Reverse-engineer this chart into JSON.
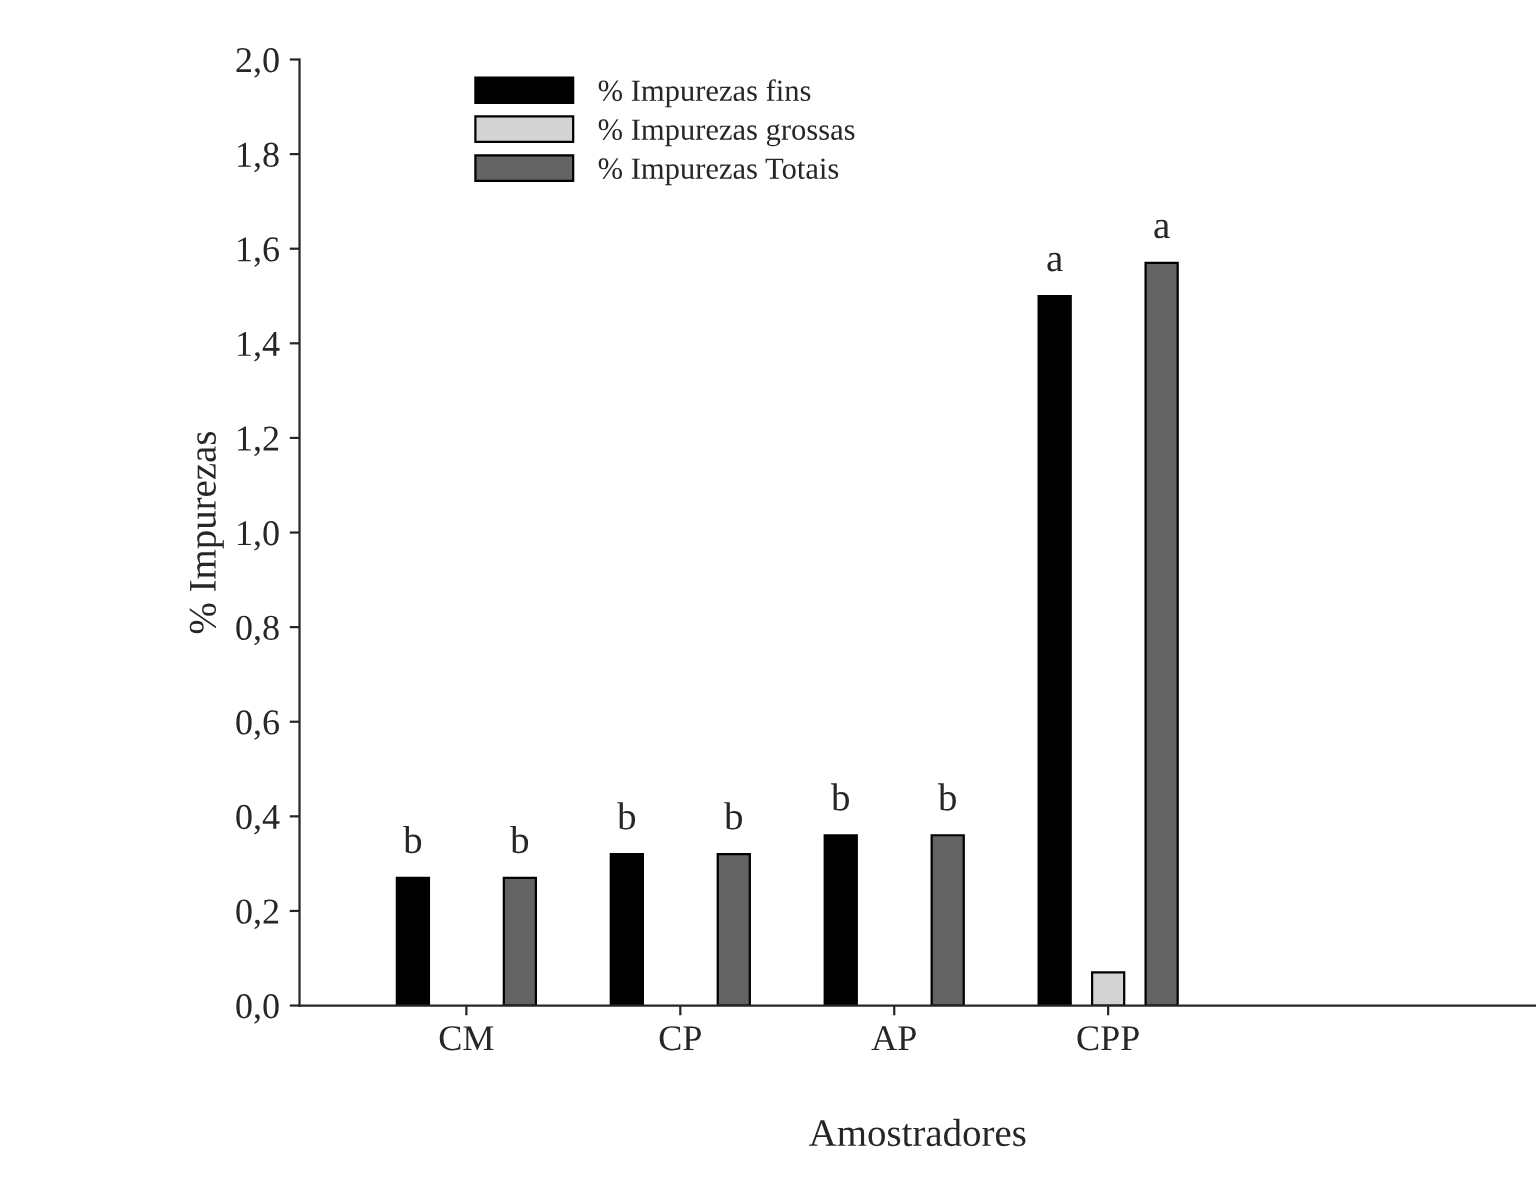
{
  "chart_data": {
    "type": "bar",
    "xlabel": "Amostradores",
    "ylabel": "% Impurezas",
    "categories": [
      "CM",
      "CP",
      "AP",
      "CPP"
    ],
    "series": [
      {
        "name": "% Impurezas fins",
        "color": "#000000",
        "values": [
          0.27,
          0.32,
          0.36,
          1.5
        ],
        "value_labels": [
          "b",
          "b",
          "b",
          "a"
        ]
      },
      {
        "name": "% Impurezas grossas",
        "color": "#d3d3d3",
        "values": [
          null,
          null,
          null,
          0.07
        ]
      },
      {
        "name": "% Impurezas Totais",
        "color": "#636363",
        "values": [
          0.27,
          0.32,
          0.36,
          1.57
        ],
        "value_labels": [
          "b",
          "b",
          "b",
          "a"
        ]
      }
    ],
    "ylim": [
      0,
      2.0
    ],
    "yticks": [
      {
        "value": 0,
        "label": "0,0"
      },
      {
        "value": 0.2,
        "label": "0,2"
      },
      {
        "value": 0.4,
        "label": "0,4"
      },
      {
        "value": 0.6,
        "label": "0,6"
      },
      {
        "value": 0.8,
        "label": "0,8"
      },
      {
        "value": 1.0,
        "label": "1,0"
      },
      {
        "value": 1.2,
        "label": "1,2"
      },
      {
        "value": 1.4,
        "label": "1,4"
      },
      {
        "value": 1.6,
        "label": "1,6"
      },
      {
        "value": 1.8,
        "label": "1,8"
      },
      {
        "value": 2.0,
        "label": "2,0"
      }
    ],
    "grid": false,
    "legend": "top left"
  }
}
